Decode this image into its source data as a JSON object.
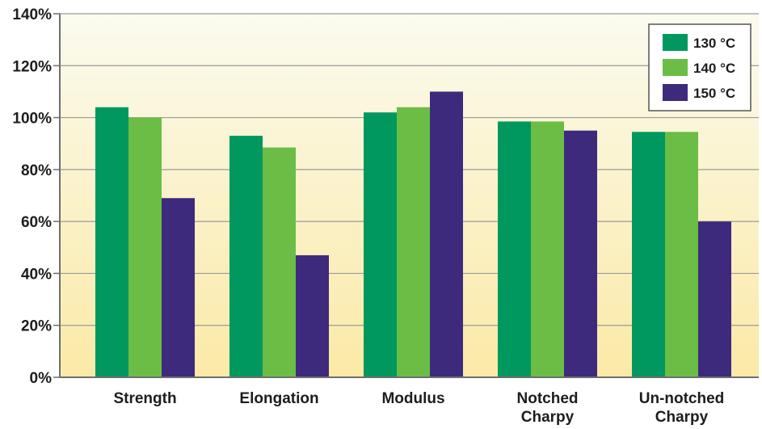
{
  "chart_data": {
    "type": "bar",
    "title": "",
    "xlabel": "",
    "ylabel": "",
    "categories": [
      "Strength",
      "Elongation",
      "Modulus",
      "Notched Charpy",
      "Un-notched Charpy"
    ],
    "category_lines": [
      [
        "Strength"
      ],
      [
        "Elongation"
      ],
      [
        "Modulus"
      ],
      [
        "Notched",
        "Charpy"
      ],
      [
        "Un-notched",
        "Charpy"
      ]
    ],
    "series": [
      {
        "name": "130 °C",
        "color": "#00985e",
        "values": [
          104,
          93,
          102,
          98.5,
          94.5
        ]
      },
      {
        "name": "140 °C",
        "color": "#6bbd45",
        "values": [
          100,
          88.5,
          104,
          98.5,
          94.5
        ]
      },
      {
        "name": "150 °C",
        "color": "#3d2a7d",
        "values": [
          69,
          47,
          110,
          95,
          60
        ]
      }
    ],
    "ylim": [
      0,
      140
    ],
    "yticks": [
      0,
      20,
      40,
      60,
      80,
      100,
      120,
      140
    ],
    "ytick_labels": [
      "0%",
      "20%",
      "40%",
      "60%",
      "80%",
      "100%",
      "120%",
      "140%"
    ],
    "grid": true,
    "legend_position": "top-right",
    "background": "yellow-gradient"
  }
}
